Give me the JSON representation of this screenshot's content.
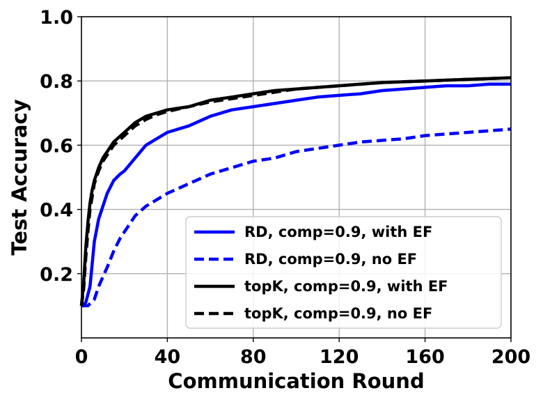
{
  "chart_data": {
    "type": "line",
    "title": "",
    "xlabel": "Communication Round",
    "ylabel": "Test Accuracy",
    "xlim": [
      0,
      200
    ],
    "ylim": [
      0,
      1.0
    ],
    "xticks": [
      0,
      40,
      80,
      120,
      160,
      200
    ],
    "yticks": [
      0.2,
      0.4,
      0.6,
      0.8,
      1.0
    ],
    "xtick_labels": [
      "0",
      "40",
      "80",
      "120",
      "160",
      "200"
    ],
    "ytick_labels": [
      "0.2",
      "0.4",
      "0.6",
      "0.8",
      "1.0"
    ],
    "grid": true,
    "legend_position": "lower right",
    "series": [
      {
        "name": "RD, comp=0.9, with EF",
        "color": "#0000ff",
        "dash": "solid",
        "x": [
          0,
          2,
          4,
          6,
          8,
          10,
          12,
          15,
          18,
          20,
          25,
          30,
          35,
          40,
          50,
          60,
          70,
          80,
          90,
          100,
          110,
          120,
          130,
          140,
          150,
          160,
          170,
          180,
          190,
          200
        ],
        "y": [
          0.1,
          0.11,
          0.16,
          0.3,
          0.37,
          0.41,
          0.45,
          0.49,
          0.51,
          0.52,
          0.56,
          0.6,
          0.62,
          0.64,
          0.66,
          0.69,
          0.71,
          0.72,
          0.73,
          0.74,
          0.75,
          0.755,
          0.76,
          0.77,
          0.775,
          0.78,
          0.785,
          0.785,
          0.79,
          0.79
        ]
      },
      {
        "name": "RD, comp=0.9, no EF",
        "color": "#0000ff",
        "dash": "dashed",
        "x": [
          0,
          3,
          6,
          8,
          10,
          12,
          15,
          18,
          20,
          25,
          30,
          35,
          40,
          50,
          60,
          70,
          80,
          90,
          100,
          110,
          120,
          130,
          140,
          150,
          160,
          170,
          180,
          190,
          200
        ],
        "y": [
          0.1,
          0.1,
          0.12,
          0.16,
          0.19,
          0.22,
          0.27,
          0.31,
          0.33,
          0.38,
          0.41,
          0.43,
          0.45,
          0.48,
          0.51,
          0.53,
          0.55,
          0.56,
          0.58,
          0.59,
          0.6,
          0.61,
          0.615,
          0.62,
          0.63,
          0.635,
          0.64,
          0.645,
          0.65
        ]
      },
      {
        "name": "topK, comp=0.9, with EF",
        "color": "#000000",
        "dash": "solid",
        "x": [
          0,
          1,
          2,
          3,
          4,
          5,
          6,
          8,
          10,
          12,
          15,
          20,
          25,
          30,
          35,
          40,
          50,
          60,
          70,
          80,
          90,
          100,
          120,
          140,
          160,
          180,
          200
        ],
        "y": [
          0.1,
          0.17,
          0.28,
          0.36,
          0.42,
          0.46,
          0.49,
          0.53,
          0.56,
          0.58,
          0.61,
          0.64,
          0.67,
          0.69,
          0.7,
          0.71,
          0.72,
          0.74,
          0.75,
          0.76,
          0.77,
          0.775,
          0.785,
          0.795,
          0.8,
          0.805,
          0.81
        ]
      },
      {
        "name": "topK, comp=0.9, no EF",
        "color": "#000000",
        "dash": "dashed",
        "x": [
          0,
          1,
          2,
          3,
          4,
          5,
          6,
          8,
          10,
          12,
          15,
          20,
          25,
          30,
          35,
          40,
          50,
          60,
          70,
          80,
          90,
          100,
          120,
          140,
          160,
          180,
          200
        ],
        "y": [
          0.1,
          0.15,
          0.25,
          0.33,
          0.4,
          0.44,
          0.48,
          0.52,
          0.55,
          0.57,
          0.6,
          0.63,
          0.66,
          0.68,
          0.695,
          0.705,
          0.72,
          0.735,
          0.745,
          0.755,
          0.765,
          0.775,
          0.785,
          0.795,
          0.8,
          0.805,
          0.81
        ]
      }
    ]
  }
}
